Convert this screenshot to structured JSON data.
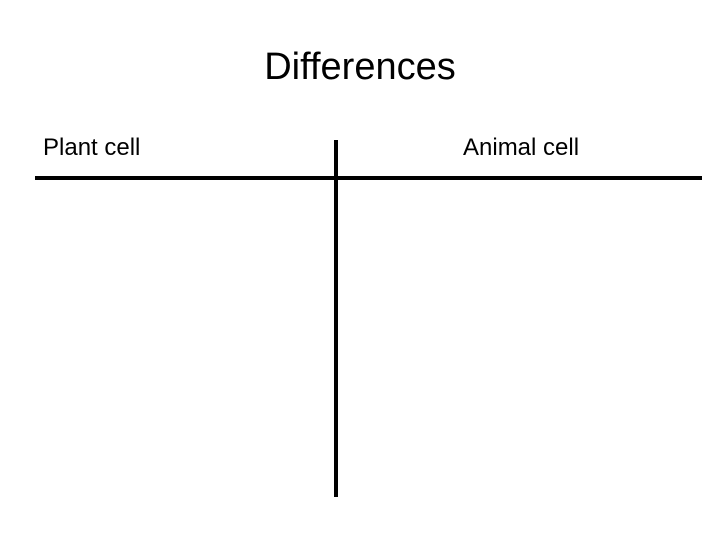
{
  "slide": {
    "title": "Differences",
    "columns": [
      {
        "label": "Plant cell"
      },
      {
        "label": "Animal cell"
      }
    ]
  }
}
